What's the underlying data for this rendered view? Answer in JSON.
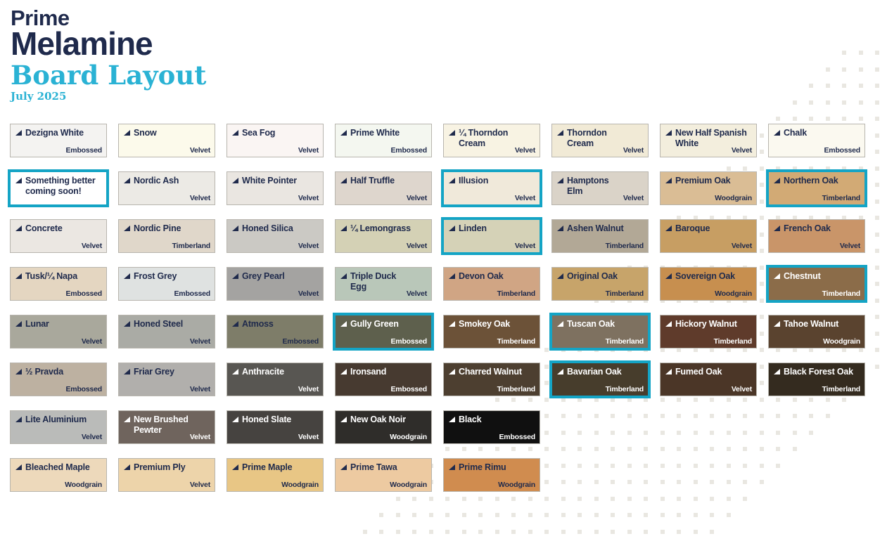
{
  "header": {
    "brand_line1": "Prime",
    "brand_line2": "Melamine",
    "title": "Board Layout",
    "date": "July 2025"
  },
  "colors": {
    "navy": "#1f2a4c",
    "teal_highlight": "#14a4c5",
    "title_teal": "#2ab2d4",
    "dot": "#e9e7e1",
    "swatch_border": "#b8b5ae"
  },
  "board": {
    "rows": [
      [
        {
          "name": "Dezigna White",
          "finish": "Embossed",
          "bg": "#f4f3f1"
        },
        {
          "name": "Snow",
          "finish": "Velvet",
          "bg": "#fcfaeb"
        },
        {
          "name": "Sea Fog",
          "finish": "Velvet",
          "bg": "#faf5f3"
        },
        {
          "name": "Prime White",
          "finish": "Embossed",
          "bg": "#f4f7f0"
        },
        {
          "name": "¼ Thorndon\nCream",
          "finish": "Velvet",
          "bg": "#f8f3e3"
        },
        {
          "name": "Thorndon\nCream",
          "finish": "Velvet",
          "bg": "#f1ead6"
        },
        {
          "name": "New Half Spanish\nWhite",
          "finish": "Velvet",
          "bg": "#f3eedd"
        },
        {
          "name": "Chalk",
          "finish": "Embossed",
          "bg": "#fbf9f0"
        }
      ],
      [
        {
          "name": "Something better\ncoming soon!",
          "finish": "",
          "bg": "#ffffff",
          "hl": true
        },
        {
          "name": "Nordic Ash",
          "finish": "Velvet",
          "bg": "#eceae5",
          "tex": "wood"
        },
        {
          "name": "White Pointer",
          "finish": "Velvet",
          "bg": "#eae6e1"
        },
        {
          "name": "Half Truffle",
          "finish": "Velvet",
          "bg": "#ded6cd"
        },
        {
          "name": "Illusion",
          "finish": "Velvet",
          "bg": "#f0e9da",
          "hl": true
        },
        {
          "name": "Hamptons\nElm",
          "finish": "Velvet",
          "bg": "#dad3c8",
          "tex": "wood"
        },
        {
          "name": "Premium Oak",
          "finish": "Woodgrain",
          "bg": "#dabd95",
          "tex": "wood"
        },
        {
          "name": "Northern Oak",
          "finish": "Timberland",
          "bg": "#d2aa75",
          "hl": true,
          "tex": "wood"
        }
      ],
      [
        {
          "name": "Concrete",
          "finish": "Velvet",
          "bg": "#ebe7e2",
          "tex": "stone"
        },
        {
          "name": "Nordic Pine",
          "finish": "Timberland",
          "bg": "#e0d7ca",
          "tex": "wood"
        },
        {
          "name": "Honed Silica",
          "finish": "Velvet",
          "bg": "#cbc9c4",
          "tex": "stone"
        },
        {
          "name": "¼ Lemongrass",
          "finish": "Velvet",
          "bg": "#d4d1b5"
        },
        {
          "name": "Linden",
          "finish": "Velvet",
          "bg": "#d5d2b7",
          "hl": true
        },
        {
          "name": "Ashen Walnut",
          "finish": "Timberland",
          "bg": "#b2a896",
          "tex": "wood"
        },
        {
          "name": "Baroque",
          "finish": "Velvet",
          "bg": "#c79e63",
          "tex": "wood"
        },
        {
          "name": "French Oak",
          "finish": "Velvet",
          "bg": "#c99569",
          "tex": "wood"
        }
      ],
      [
        {
          "name": "Tusk/¼ Napa",
          "finish": "Embossed",
          "bg": "#e4d6c1"
        },
        {
          "name": "Frost Grey",
          "finish": "Embossed",
          "bg": "#dfe2e1"
        },
        {
          "name": "Grey Pearl",
          "finish": "Velvet",
          "bg": "#a4a3a1",
          "tex": "stone"
        },
        {
          "name": "Triple Duck\nEgg",
          "finish": "Velvet",
          "bg": "#b9c7b9"
        },
        {
          "name": "Devon Oak",
          "finish": "Timberland",
          "bg": "#d0a584",
          "tex": "wood"
        },
        {
          "name": "Original Oak",
          "finish": "Timberland",
          "bg": "#c7a46a",
          "tex": "wood"
        },
        {
          "name": "Sovereign Oak",
          "finish": "Woodgrain",
          "bg": "#c78f4f",
          "tex": "wood"
        },
        {
          "name": "Chestnut",
          "finish": "Timberland",
          "bg": "#8b6c49",
          "text": "white",
          "hl": true,
          "tex": "wood"
        }
      ],
      [
        {
          "name": "Lunar",
          "finish": "Velvet",
          "bg": "#a9a89c",
          "tex": "stone"
        },
        {
          "name": "Honed Steel",
          "finish": "Velvet",
          "bg": "#aaaba5",
          "tex": "stone"
        },
        {
          "name": "Atmoss",
          "finish": "Embossed",
          "bg": "#7e7d69"
        },
        {
          "name": "Gully Green",
          "finish": "Embossed",
          "bg": "#5e604d",
          "text": "white",
          "hl": true
        },
        {
          "name": "Smokey Oak",
          "finish": "Timberland",
          "bg": "#6c5238",
          "text": "white",
          "tex": "wood"
        },
        {
          "name": "Tuscan Oak",
          "finish": "Timberland",
          "bg": "#7e7160",
          "text": "white",
          "hl": true,
          "tex": "wood"
        },
        {
          "name": "Hickory Walnut",
          "finish": "Timberland",
          "bg": "#5f3b2b",
          "text": "white",
          "tex": "wood"
        },
        {
          "name": "Tahoe Walnut",
          "finish": "Woodgrain",
          "bg": "#5a432f",
          "text": "white",
          "tex": "wood"
        }
      ],
      [
        {
          "name": "½ Pravda",
          "finish": "Embossed",
          "bg": "#bdb1a1"
        },
        {
          "name": "Friar Grey",
          "finish": "Velvet",
          "bg": "#b1afac"
        },
        {
          "name": "Anthracite",
          "finish": "Velvet",
          "bg": "#585652",
          "text": "white"
        },
        {
          "name": "Ironsand",
          "finish": "Embossed",
          "bg": "#473a30",
          "text": "white"
        },
        {
          "name": "Charred Walnut",
          "finish": "Timberland",
          "bg": "#4d3f30",
          "text": "white",
          "tex": "wood"
        },
        {
          "name": "Bavarian Oak",
          "finish": "Timberland",
          "bg": "#473d2c",
          "text": "white",
          "hl": true,
          "tex": "wood"
        },
        {
          "name": "Fumed Oak",
          "finish": "Velvet",
          "bg": "#4b3627",
          "text": "white",
          "tex": "wood"
        },
        {
          "name": "Black Forest Oak",
          "finish": "Timberland",
          "bg": "#342b1f",
          "text": "white",
          "tex": "wood"
        }
      ],
      [
        {
          "name": "Lite Aluminium",
          "finish": "Velvet",
          "bg": "#babbb9",
          "tex": "stone"
        },
        {
          "name": "New Brushed\nPewter",
          "finish": "Velvet",
          "bg": "#6f645d",
          "text": "white",
          "tex": "wood"
        },
        {
          "name": "Honed Slate",
          "finish": "Velvet",
          "bg": "#464340",
          "text": "white",
          "tex": "stone"
        },
        {
          "name": "New Oak Noir",
          "finish": "Woodgrain",
          "bg": "#2f2d2a",
          "text": "white",
          "tex": "wood"
        },
        {
          "name": "Black",
          "finish": "Embossed",
          "bg": "#101010",
          "text": "white"
        }
      ],
      [
        {
          "name": "Bleached Maple",
          "finish": "Woodgrain",
          "bg": "#edd9bb",
          "tex": "wood"
        },
        {
          "name": "Premium Ply",
          "finish": "Velvet",
          "bg": "#edd4aa",
          "tex": "wood"
        },
        {
          "name": "Prime Maple",
          "finish": "Woodgrain",
          "bg": "#e8c685",
          "tex": "wood"
        },
        {
          "name": "Prime Tawa",
          "finish": "Woodgrain",
          "bg": "#edcaa1",
          "tex": "wood"
        },
        {
          "name": "Prime Rimu",
          "finish": "Woodgrain",
          "bg": "#d08c4f",
          "tex": "wood"
        }
      ]
    ]
  }
}
